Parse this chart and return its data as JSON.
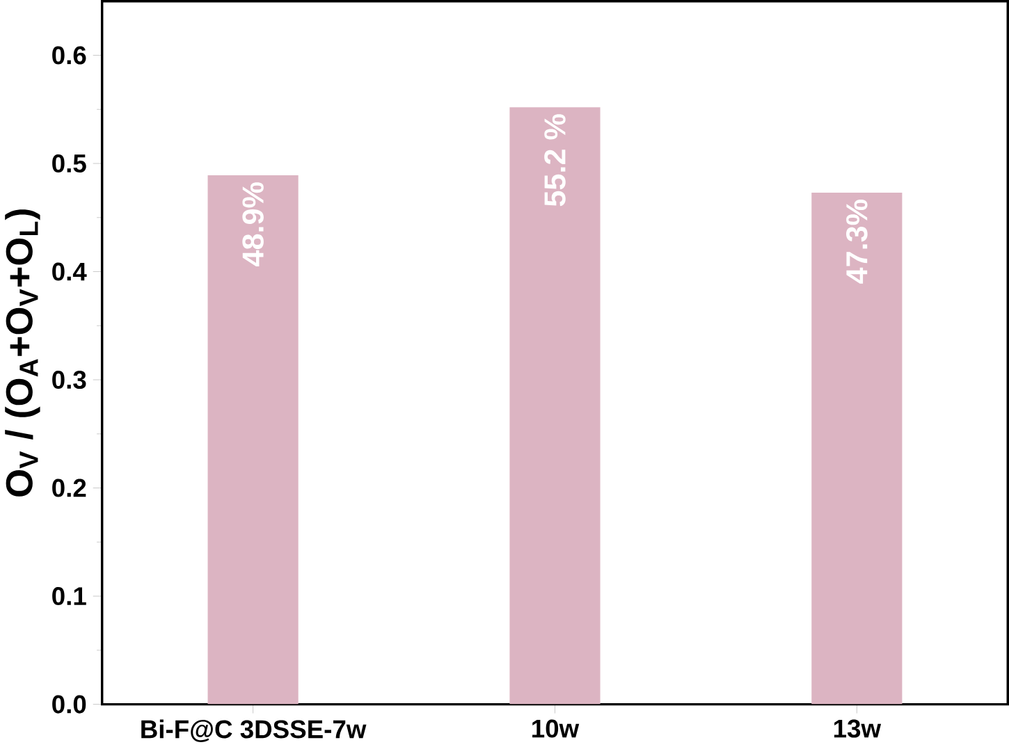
{
  "chart_data": {
    "type": "bar",
    "ylabel": "O$_{V}$ / (O$_{A}$+O$_{V}$+O$_{L}$)",
    "categories": [
      "Bi-F@C 3DSSE-7w",
      "10w",
      "13w"
    ],
    "values": [
      0.489,
      0.552,
      0.473
    ],
    "value_labels": [
      "48.9%",
      "55.2 %",
      "47.3%"
    ],
    "color": "#dcb4c2",
    "ylim": [
      0,
      0.65
    ],
    "yticks": [
      {
        "value": 0,
        "label": "0.0"
      },
      0.1,
      0.2,
      0.3,
      0.4,
      0.5,
      0.6
    ],
    "grid": false
  }
}
